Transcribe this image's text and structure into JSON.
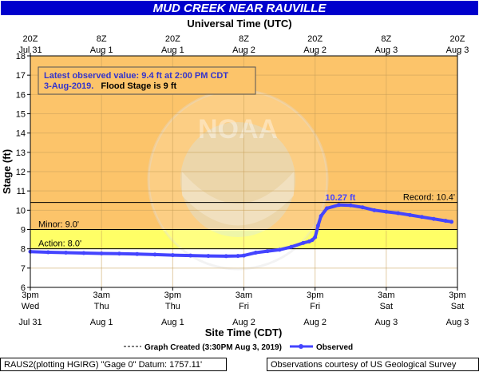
{
  "title": "MUD CREEK NEAR RAUVILLE",
  "top_axis_title": "Universal Time (UTC)",
  "bottom_axis_title": "Site Time (CDT)",
  "y_axis_title": "Stage (ft)",
  "colors": {
    "title_bg": "#0000cc",
    "plot_bg_top": "#fcc46a",
    "action_band": "#ffffff",
    "minor_band": "#ffff66",
    "observed": "#4444ff",
    "annotation_text": "#3333cc"
  },
  "annotation": {
    "line1": "Latest observed value: 9.4 ft at 2:00 PM CDT",
    "line2_blue": "3-Aug-2019.",
    "line2_black": "Flood Stage is 9 ft"
  },
  "peak_label": "10.27 ft",
  "thresholds": {
    "record_label": "Record: 10.4'",
    "minor_label": "Minor: 9.0'",
    "action_label": "Action: 8.0'"
  },
  "legend": {
    "created_label": "Graph Created (3:30PM Aug 3, 2019)",
    "observed_label": "Observed"
  },
  "footer": {
    "left": "RAUS2(plotting HGIRG) \"Gage 0\" Datum: 1757.11'",
    "right": "Observations courtesy of US Geological Survey"
  },
  "watermark": "NOAA",
  "chart_data": {
    "type": "line",
    "title": "MUD CREEK NEAR RAUVILLE",
    "xlabel": "Site Time (CDT)",
    "x2label": "Universal Time (UTC)",
    "ylabel": "Stage (ft)",
    "x_unit": "hours after 3pm CDT Jul 31",
    "xlim": [
      0,
      72
    ],
    "ylim": [
      6,
      18
    ],
    "y_ticks": [
      6,
      7,
      8,
      9,
      10,
      11,
      12,
      13,
      14,
      15,
      16,
      17,
      18
    ],
    "grid": true,
    "legend_position": "bottom",
    "bottom_ticks": [
      {
        "hour": 0,
        "time": "3pm",
        "day": "Wed",
        "date": "Jul 31"
      },
      {
        "hour": 12,
        "time": "3am",
        "day": "Thu",
        "date": "Aug 1"
      },
      {
        "hour": 24,
        "time": "3pm",
        "day": "Thu",
        "date": "Aug 1"
      },
      {
        "hour": 36,
        "time": "3am",
        "day": "Fri",
        "date": "Aug 2"
      },
      {
        "hour": 48,
        "time": "3pm",
        "day": "Fri",
        "date": "Aug 2"
      },
      {
        "hour": 60,
        "time": "3am",
        "day": "Sat",
        "date": "Aug 3"
      },
      {
        "hour": 72,
        "time": "3pm",
        "day": "Sat",
        "date": "Aug 3"
      }
    ],
    "top_ticks": [
      {
        "hour": 0,
        "time": "20Z",
        "date": "Jul 31"
      },
      {
        "hour": 12,
        "time": "8Z",
        "date": "Aug 1"
      },
      {
        "hour": 24,
        "time": "20Z",
        "date": "Aug 1"
      },
      {
        "hour": 36,
        "time": "8Z",
        "date": "Aug 2"
      },
      {
        "hour": 48,
        "time": "20Z",
        "date": "Aug 2"
      },
      {
        "hour": 60,
        "time": "8Z",
        "date": "Aug 3"
      },
      {
        "hour": 72,
        "time": "20Z",
        "date": "Aug 3"
      }
    ],
    "thresholds": {
      "action": 8.0,
      "minor": 9.0,
      "record": 10.4
    },
    "series": [
      {
        "name": "Observed",
        "x": [
          0,
          3,
          6,
          9,
          12,
          15,
          18,
          21,
          24,
          27,
          30,
          33,
          35,
          36,
          38,
          40,
          42,
          44,
          46,
          47,
          47.5,
          48,
          48.5,
          49,
          50,
          52,
          54,
          56,
          58,
          60,
          62,
          64,
          66,
          68,
          70,
          71
        ],
        "y": [
          7.85,
          7.82,
          7.8,
          7.78,
          7.76,
          7.75,
          7.73,
          7.7,
          7.67,
          7.65,
          7.63,
          7.62,
          7.63,
          7.65,
          7.8,
          7.88,
          7.95,
          8.1,
          8.3,
          8.38,
          8.45,
          8.6,
          9.2,
          9.7,
          10.1,
          10.27,
          10.25,
          10.15,
          10.0,
          9.92,
          9.85,
          9.75,
          9.65,
          9.55,
          9.45,
          9.4
        ]
      }
    ]
  }
}
